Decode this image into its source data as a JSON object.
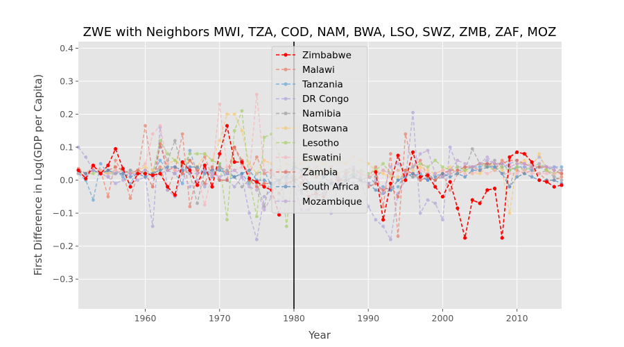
{
  "chart_data": {
    "type": "line",
    "title": "ZWE with Neighbors MWI, TZA, COD, NAM, BWA, LSO, SWZ, ZMB, ZAF, MOZ",
    "xlabel": "Year",
    "ylabel": "First Difference in Log(GDP per Capita)",
    "xlim": [
      1951,
      2016
    ],
    "ylim": [
      -0.39,
      0.42
    ],
    "xticks": [
      1960,
      1970,
      1980,
      1990,
      2000,
      2010
    ],
    "yticks": [
      -0.3,
      -0.2,
      -0.1,
      0.0,
      0.1,
      0.2,
      0.3,
      0.4
    ],
    "ytick_labels": [
      "−0.3",
      "−0.2",
      "−0.1",
      "0.0",
      "0.1",
      "0.2",
      "0.3",
      "0.4"
    ],
    "grid": true,
    "vertical_line": {
      "x": 1980,
      "color": "#000000"
    },
    "legend_position": "upper-center",
    "series": [
      {
        "name": "Zimbabwe",
        "color": "#ff0000",
        "alpha": 1.0,
        "start": 1951,
        "segments": [
          {
            "start": 1951,
            "values": [
              0.03,
              0.005,
              0.045,
              0.02,
              0.045,
              0.095,
              0.035,
              -0.02,
              0.02,
              0.02,
              0.015,
              0.02,
              -0.02,
              -0.045,
              0.055,
              0.03,
              -0.015,
              0.045,
              -0.02,
              0.08,
              0.165,
              0.055,
              0.055,
              0.005,
              -0.005,
              -0.02,
              -0.03,
              -0.105
            ]
          },
          {
            "start": 1991,
            "values": [
              0.025,
              -0.12,
              -0.01,
              0.075,
              0.0,
              0.085,
              0.01,
              0.015,
              -0.02,
              -0.05,
              -0.005,
              -0.085,
              -0.175,
              -0.06,
              -0.07,
              -0.03,
              -0.025,
              -0.175,
              0.07,
              0.085,
              0.08,
              0.055,
              0.0,
              -0.005,
              -0.02,
              -0.015
            ]
          }
        ]
      },
      {
        "name": "Malawi",
        "color": "#e8846e",
        "alpha": 0.75,
        "start": 1951,
        "values": [
          0.035,
          0.02,
          0.04,
          0.03,
          -0.05,
          0.06,
          0.02,
          -0.055,
          0.02,
          0.165,
          0.02,
          0.04,
          -0.03,
          0.03,
          0.14,
          -0.08,
          0.02,
          0.07,
          0.01,
          0.04,
          0.02,
          0.1,
          0.05,
          0.02,
          0.07,
          0.02,
          0.03,
          -0.01,
          0.03,
          0.01,
          -0.01,
          0.02,
          0.01,
          0.02,
          0.04,
          0.0,
          0.02,
          0.03,
          0.02,
          0.01,
          0.04,
          -0.08,
          0.08,
          -0.17,
          0.14,
          0.04,
          0.06,
          0.01,
          0.0,
          0.02,
          -0.03,
          0.02,
          0.03,
          0.04,
          0.03,
          0.05,
          0.03,
          0.06,
          0.04,
          0.03,
          0.02,
          0.03,
          0.02,
          0.0,
          0.0,
          0.01
        ]
      },
      {
        "name": "Tanzania",
        "color": "#6aa8d6",
        "alpha": 0.75,
        "start": 1951,
        "values": [
          0.02,
          0.0,
          -0.06,
          0.05,
          0.02,
          0.03,
          0.01,
          -0.01,
          0.03,
          0.02,
          0.02,
          0.06,
          0.03,
          0.02,
          -0.01,
          0.09,
          0.02,
          0.03,
          0.01,
          0.05,
          0.0,
          0.01,
          0.02,
          -0.01,
          0.02,
          0.03,
          -0.02,
          0.0,
          0.02,
          0.0,
          -0.03,
          -0.01,
          -0.02,
          0.01,
          0.02,
          0.0,
          0.01,
          0.02,
          0.0,
          0.01,
          -0.01,
          -0.02,
          -0.03,
          -0.02,
          0.02,
          0.01,
          0.02,
          0.0,
          0.02,
          0.01,
          0.02,
          0.03,
          0.03,
          0.04,
          0.04,
          0.05,
          0.04,
          0.05,
          0.03,
          0.04,
          0.04,
          0.03,
          0.04,
          0.03,
          0.04,
          0.04
        ]
      },
      {
        "name": "DR Congo",
        "color": "#b0a6dc",
        "alpha": 0.75,
        "start": 1951,
        "values": [
          0.1,
          0.07,
          0.03,
          0.02,
          0.01,
          -0.01,
          0.0,
          0.03,
          0.0,
          0.01,
          -0.14,
          0.16,
          -0.03,
          -0.05,
          0.02,
          -0.02,
          0.0,
          -0.02,
          0.01,
          0.0,
          0.0,
          -0.02,
          0.01,
          -0.1,
          -0.18,
          -0.05,
          -0.03,
          -0.1,
          0.0,
          -0.02,
          -0.04,
          -0.05,
          -0.03,
          -0.02,
          -0.1,
          -0.01,
          -0.02,
          -0.01,
          0.0,
          -0.08,
          -0.12,
          -0.14,
          -0.18,
          -0.04,
          0.0,
          0.205,
          -0.1,
          -0.06,
          -0.07,
          -0.12,
          0.1,
          0.04,
          0.04,
          0.04,
          0.05,
          0.06,
          0.05,
          0.04,
          0.05,
          0.06,
          0.04,
          0.05,
          0.07,
          0.04,
          0.04,
          0.03
        ]
      },
      {
        "name": "Namibia",
        "color": "#a0a0a0",
        "alpha": 0.75,
        "start": 1951,
        "values": [
          0.02,
          0.02,
          0.03,
          0.02,
          0.03,
          0.02,
          0.02,
          0.03,
          0.02,
          0.03,
          0.02,
          0.1,
          0.06,
          0.12,
          0.03,
          0.02,
          -0.07,
          0.03,
          0.02,
          0.04,
          0.03,
          0.01,
          -0.02,
          0.0,
          -0.01,
          -0.08,
          0.02,
          -0.01,
          -0.01,
          0.0,
          -0.03,
          -0.02,
          -0.04,
          -0.01,
          -0.01,
          0.01,
          -0.02,
          0.03,
          0.0,
          0.01,
          0.01,
          0.03,
          0.02,
          0.0,
          0.02,
          0.01,
          0.01,
          0.02,
          0.0,
          0.01,
          0.02,
          0.02,
          0.03,
          0.095,
          0.05,
          0.04,
          0.06,
          0.04,
          -0.02,
          0.05,
          0.03,
          0.04,
          0.02,
          0.03,
          0.01,
          0.0
        ]
      },
      {
        "name": "Botswana",
        "color": "#f9c973",
        "alpha": 0.75,
        "start": 1951,
        "values": [
          0.03,
          0.02,
          0.03,
          0.02,
          0.02,
          0.03,
          0.03,
          0.02,
          0.03,
          0.04,
          0.03,
          0.03,
          0.05,
          0.06,
          0.05,
          0.06,
          0.04,
          0.08,
          0.06,
          0.12,
          0.2,
          0.2,
          0.15,
          0.05,
          0.02,
          0.06,
          0.05,
          0.03,
          0.05,
          0.04,
          0.05,
          0.06,
          0.06,
          0.05,
          0.04,
          0.06,
          0.05,
          0.07,
          0.06,
          0.05,
          0.03,
          0.02,
          0.01,
          0.01,
          0.02,
          0.03,
          0.04,
          0.03,
          0.02,
          0.03,
          0.04,
          0.02,
          0.03,
          0.02,
          0.02,
          0.04,
          0.05,
          0.03,
          -0.1,
          0.05,
          0.06,
          0.04,
          0.08,
          0.03,
          0.02,
          0.02
        ]
      },
      {
        "name": "Lesotho",
        "color": "#a8cf6e",
        "alpha": 0.75,
        "start": 1951,
        "values": [
          0.02,
          0.02,
          0.02,
          0.03,
          0.02,
          0.02,
          0.03,
          0.02,
          0.03,
          0.02,
          0.02,
          0.12,
          0.08,
          0.06,
          0.04,
          0.08,
          0.08,
          0.08,
          0.06,
          0.05,
          -0.12,
          0.15,
          0.21,
          0.0,
          -0.11,
          0.13,
          0.14,
          0.08,
          -0.14,
          0.05,
          0.03,
          0.04,
          0.02,
          0.01,
          0.03,
          0.02,
          0.03,
          0.02,
          0.03,
          0.02,
          0.03,
          0.05,
          0.02,
          0.03,
          0.03,
          0.04,
          0.05,
          0.04,
          0.06,
          0.04,
          0.03,
          0.04,
          0.03,
          0.04,
          0.05,
          0.04,
          0.03,
          0.04,
          0.03,
          0.04,
          0.03,
          0.04,
          0.05,
          0.03,
          0.02,
          0.03
        ]
      },
      {
        "name": "Eswatini",
        "color": "#f7b5ba",
        "alpha": 0.75,
        "start": 1951,
        "values": [
          0.03,
          0.02,
          0.04,
          0.03,
          0.02,
          0.03,
          0.02,
          0.02,
          0.03,
          0.05,
          0.14,
          0.165,
          0.05,
          0.03,
          0.02,
          0.04,
          0.02,
          -0.075,
          0.02,
          0.23,
          0.04,
          0.03,
          0.04,
          0.02,
          0.26,
          0.03,
          0.02,
          0.03,
          0.02,
          0.03,
          0.02,
          0.03,
          0.04,
          0.03,
          0.04,
          0.02,
          0.03,
          0.04,
          0.02,
          0.01,
          0.02,
          0.03,
          0.02,
          0.03,
          0.02,
          0.02,
          0.03,
          0.02,
          0.02,
          0.03,
          0.02,
          0.03,
          0.02,
          0.02,
          0.03,
          0.02,
          0.03,
          0.02,
          0.02,
          0.02,
          0.03,
          0.02,
          0.02,
          0.02,
          0.02,
          0.02
        ]
      },
      {
        "name": "Zambia",
        "color": "#dd6b5a",
        "alpha": 0.75,
        "start": 1951,
        "values": [
          0.03,
          0.02,
          0.03,
          0.02,
          0.03,
          0.04,
          0.03,
          0.02,
          0.03,
          0.02,
          -0.02,
          0.11,
          0.03,
          0.04,
          0.02,
          0.06,
          0.03,
          -0.01,
          0.04,
          0.0,
          0.0,
          0.1,
          0.06,
          0.0,
          -0.02,
          -0.01,
          -0.01,
          -0.04,
          -0.01,
          0.0,
          0.01,
          -0.05,
          -0.04,
          -0.05,
          -0.01,
          0.0,
          0.0,
          0.01,
          0.0,
          -0.02,
          -0.01,
          -0.03,
          -0.02,
          -0.05,
          0.03,
          0.02,
          0.0,
          0.01,
          0.0,
          0.02,
          0.03,
          0.03,
          0.04,
          0.04,
          0.05,
          0.05,
          0.05,
          0.05,
          0.06,
          0.06,
          0.05,
          0.04,
          0.04,
          0.04,
          0.03,
          0.02
        ]
      },
      {
        "name": "South Africa",
        "color": "#5b8fc0",
        "alpha": 0.75,
        "start": 1951,
        "values": [
          0.03,
          0.02,
          0.03,
          0.02,
          0.03,
          0.02,
          0.02,
          0.01,
          0.02,
          0.01,
          0.02,
          0.03,
          0.04,
          0.04,
          0.03,
          0.04,
          0.04,
          0.02,
          0.03,
          0.03,
          0.02,
          0.01,
          0.02,
          0.03,
          0.0,
          0.0,
          -0.01,
          0.0,
          0.01,
          0.04,
          0.03,
          -0.01,
          -0.03,
          0.01,
          -0.01,
          -0.02,
          0.0,
          0.01,
          0.0,
          -0.01,
          -0.03,
          -0.04,
          -0.03,
          0.0,
          0.01,
          0.02,
          0.01,
          0.0,
          0.01,
          0.02,
          0.01,
          0.02,
          0.01,
          0.03,
          0.03,
          0.04,
          0.04,
          0.02,
          -0.02,
          0.01,
          0.02,
          0.01,
          0.0,
          0.0,
          0.0,
          -0.01
        ]
      },
      {
        "name": "Mozambique",
        "color": "#c2a4d8",
        "alpha": 0.75,
        "start": 1951,
        "values": [
          0.02,
          0.01,
          0.03,
          0.02,
          0.01,
          0.02,
          0.03,
          0.02,
          0.02,
          0.03,
          0.01,
          0.02,
          0.03,
          0.02,
          0.04,
          0.02,
          0.02,
          0.03,
          0.02,
          0.01,
          0.02,
          0.03,
          0.01,
          -0.02,
          -0.03,
          -0.09,
          -0.05,
          -0.06,
          0.02,
          -0.02,
          -0.09,
          -0.09,
          -0.05,
          -0.04,
          0.0,
          -0.02,
          0.03,
          0.04,
          0.01,
          -0.01,
          0.0,
          -0.04,
          0.04,
          0.05,
          0.02,
          0.04,
          0.08,
          0.09,
          0.02,
          0.01,
          0.03,
          0.06,
          0.05,
          0.04,
          0.05,
          0.07,
          0.05,
          0.05,
          0.04,
          0.05,
          0.05,
          0.04,
          0.05,
          0.04,
          0.03,
          0.03
        ]
      }
    ]
  }
}
